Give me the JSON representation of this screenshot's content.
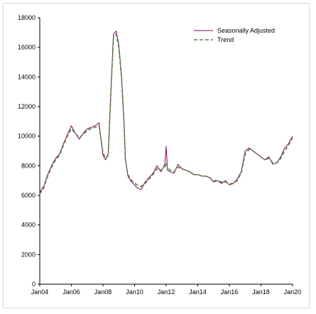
{
  "chart_data": {
    "type": "line",
    "x_unit": "month",
    "xlim": [
      "2004-01",
      "2020-01"
    ],
    "ylim": [
      0,
      18000
    ],
    "y_ticks": [
      0,
      2000,
      4000,
      6000,
      8000,
      10000,
      12000,
      14000,
      16000,
      18000
    ],
    "x_ticks": [
      "Jan04",
      "Jan06",
      "Jan08",
      "Jan10",
      "Jan12",
      "Jan14",
      "Jan16",
      "Jan18",
      "Jan20"
    ],
    "grid": false,
    "legend_position": "top-right",
    "series": [
      {
        "name": "Seasonally Adjusted",
        "color": "#800060",
        "style": "solid",
        "x": [
          "2004-01",
          "2004-04",
          "2004-07",
          "2004-10",
          "2005-01",
          "2005-04",
          "2005-07",
          "2005-10",
          "2006-01",
          "2006-04",
          "2006-07",
          "2006-10",
          "2007-01",
          "2007-04",
          "2007-07",
          "2007-10",
          "2008-01",
          "2008-03",
          "2008-05",
          "2008-07",
          "2008-09",
          "2008-11",
          "2009-01",
          "2009-03",
          "2009-05",
          "2009-06",
          "2009-08",
          "2009-10",
          "2009-12",
          "2010-03",
          "2010-06",
          "2010-09",
          "2010-12",
          "2011-03",
          "2011-06",
          "2011-09",
          "2011-12",
          "2012-01",
          "2012-02",
          "2012-04",
          "2012-07",
          "2012-10",
          "2013-01",
          "2013-04",
          "2013-07",
          "2013-10",
          "2014-01",
          "2014-04",
          "2014-07",
          "2014-10",
          "2015-01",
          "2015-04",
          "2015-07",
          "2015-10",
          "2016-01",
          "2016-04",
          "2016-07",
          "2016-10",
          "2017-01",
          "2017-04",
          "2017-07",
          "2017-10",
          "2018-01",
          "2018-04",
          "2018-07",
          "2018-10",
          "2019-01",
          "2019-04",
          "2019-07",
          "2019-10",
          "2020-01"
        ],
        "y": [
          6200,
          6600,
          7400,
          8000,
          8500,
          8800,
          9500,
          10100,
          10700,
          10200,
          9800,
          10200,
          10500,
          10600,
          10700,
          10900,
          8700,
          8400,
          8800,
          13000,
          16900,
          17100,
          16200,
          14200,
          11000,
          8500,
          7300,
          7000,
          6800,
          6500,
          6400,
          6900,
          7200,
          7500,
          8000,
          7600,
          8100,
          9300,
          7700,
          7600,
          7500,
          8100,
          7800,
          7700,
          7600,
          7400,
          7400,
          7300,
          7300,
          7200,
          6900,
          7000,
          6800,
          7000,
          6700,
          6800,
          7100,
          7600,
          9000,
          9200,
          9000,
          8800,
          8600,
          8400,
          8600,
          8100,
          8200,
          8600,
          9200,
          9500,
          10000
        ]
      },
      {
        "name": "Trend",
        "color": "#4d8a3a",
        "style": "dashed",
        "x": [
          "2004-01",
          "2004-04",
          "2004-07",
          "2004-10",
          "2005-01",
          "2005-04",
          "2005-07",
          "2005-10",
          "2006-01",
          "2006-04",
          "2006-07",
          "2006-10",
          "2007-01",
          "2007-04",
          "2007-07",
          "2007-10",
          "2008-01",
          "2008-03",
          "2008-05",
          "2008-07",
          "2008-09",
          "2008-11",
          "2009-01",
          "2009-03",
          "2009-05",
          "2009-06",
          "2009-08",
          "2009-10",
          "2009-12",
          "2010-03",
          "2010-06",
          "2010-09",
          "2010-12",
          "2011-03",
          "2011-06",
          "2011-09",
          "2011-12",
          "2012-01",
          "2012-02",
          "2012-04",
          "2012-07",
          "2012-10",
          "2013-01",
          "2013-04",
          "2013-07",
          "2013-10",
          "2014-01",
          "2014-04",
          "2014-07",
          "2014-10",
          "2015-01",
          "2015-04",
          "2015-07",
          "2015-10",
          "2016-01",
          "2016-04",
          "2016-07",
          "2016-10",
          "2017-01",
          "2017-04",
          "2017-07",
          "2017-10",
          "2018-01",
          "2018-04",
          "2018-07",
          "2018-10",
          "2019-01",
          "2019-04",
          "2019-07",
          "2019-10",
          "2020-01"
        ],
        "y": [
          6100,
          6500,
          7300,
          7900,
          8400,
          8700,
          9400,
          10000,
          10500,
          10200,
          9900,
          10100,
          10400,
          10500,
          10600,
          10700,
          8900,
          8500,
          8700,
          12800,
          16700,
          16900,
          16000,
          14000,
          10800,
          8400,
          7400,
          7100,
          6900,
          6700,
          6600,
          6800,
          7100,
          7400,
          7800,
          7700,
          7900,
          8200,
          7900,
          7700,
          7600,
          7900,
          7800,
          7700,
          7600,
          7400,
          7400,
          7300,
          7300,
          7200,
          7000,
          7000,
          6900,
          6900,
          6800,
          6800,
          7000,
          7500,
          8800,
          9100,
          9000,
          8800,
          8600,
          8400,
          8500,
          8200,
          8200,
          8500,
          9000,
          9400,
          9900
        ]
      }
    ]
  }
}
